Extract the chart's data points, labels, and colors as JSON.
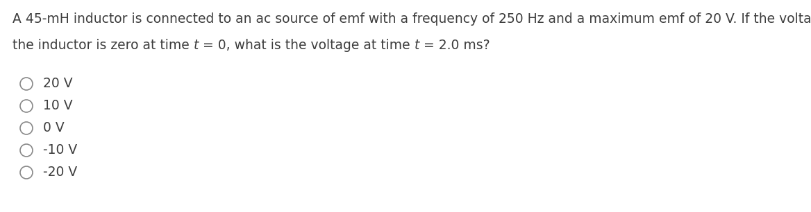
{
  "question_line1": "A 45-mH inductor is connected to an ac source of emf with a frequency of 250 Hz and a maximum emf of 20 V. If the voltage across",
  "question_line2": "the inductor is zero at time ⁤t⁤ = 0, what is the voltage at time ⁤t⁤ = 2.0 ms?",
  "question_line2_plain": "the inductor is zero at time t = 0, what is the voltage at time t = 2.0 ms?",
  "options": [
    "20 V",
    "10 V",
    "0 V",
    "-10 V",
    "-20 V"
  ],
  "text_color": "#3d3d3d",
  "circle_color": "#888888",
  "background_color": "#ffffff",
  "question_fontsize": 13.5,
  "option_fontsize": 13.5,
  "fig_width": 11.68,
  "fig_height": 3.06
}
